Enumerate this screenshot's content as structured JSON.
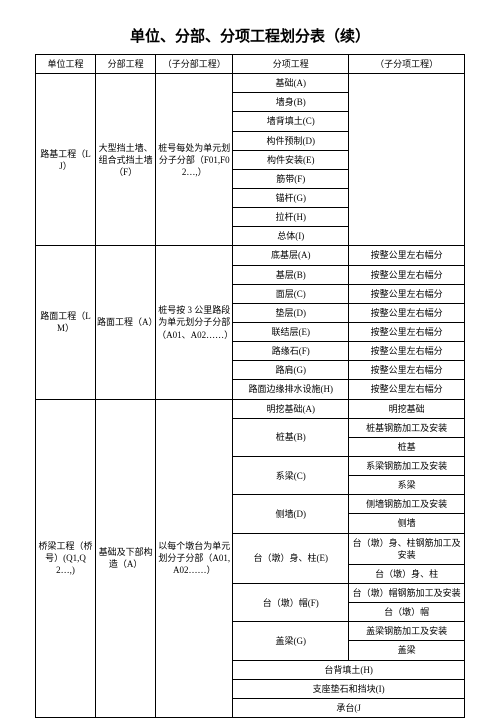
{
  "title": "单位、分部、分项工程划分表（续）",
  "headers": {
    "c1": "单位工程",
    "c2": "分部工程",
    "c3": "（子分部工程）",
    "c4": "分项工程",
    "c5": "（子分项工程）"
  },
  "s1": {
    "unit": "路基工程（LJ）",
    "part": "大型挡土墙、组合式挡土墙（F）",
    "sub": "桩号每处为单元划分子分部（F01,F02…,）",
    "items": [
      "基础(A)",
      "墙身(B)",
      "墙背填土(C)",
      "构件预制(D)",
      "构件安装(E)",
      "筋带(F)",
      "锚杆(G)",
      "拉杆(H)",
      "总体(I)"
    ]
  },
  "s2": {
    "unit": "路面工程（LM）",
    "part": "路面工程（A）",
    "sub": "桩号按 3 公里路段为单元划分子分部（A01、A02……）",
    "rows": [
      [
        "底基层(A)",
        "按整公里左右幅分"
      ],
      [
        "基层(B)",
        "按整公里左右幅分"
      ],
      [
        "面层(C)",
        "按整公里左右幅分"
      ],
      [
        "垫层(D)",
        "按整公里左右幅分"
      ],
      [
        "联结层(E)",
        "按整公里左右幅分"
      ],
      [
        "路缘石(F)",
        "按整公里左右幅分"
      ],
      [
        "路肩(G)",
        "按整公里左右幅分"
      ],
      [
        "路面边缘排水设施(H)",
        "按整公里左右幅分"
      ]
    ]
  },
  "s3": {
    "unit": "桥梁工程（桥号）(Q1,Q2…,)",
    "part": "基础及下部构造（A）",
    "sub": "以每个墩台为单元划分子分部（A01,A02……）",
    "rows": [
      {
        "c4": "明挖基础(A)",
        "c5": [
          "明挖基础"
        ]
      },
      {
        "c4": "桩基(B)",
        "c5": [
          "桩基钢筋加工及安装",
          "桩基"
        ]
      },
      {
        "c4": "系梁(C)",
        "c5": [
          "系梁钢筋加工及安装",
          "系梁"
        ]
      },
      {
        "c4": "侧墙(D)",
        "c5": [
          "侧墙钢筋加工及安装",
          "侧墙"
        ]
      },
      {
        "c4": "台（墩）身、柱(E)",
        "c5": [
          "台（墩）身、柱钢筋加工及安装",
          "台（墩）身、柱"
        ]
      },
      {
        "c4": "台（墩）帽(F)",
        "c5": [
          "台（墩）帽钢筋加工及安装",
          "台（墩）帽"
        ]
      },
      {
        "c4": "盖梁(G)",
        "c5": [
          "盖梁钢筋加工及安装",
          "盖梁"
        ]
      }
    ],
    "tail": [
      "台背填土(H)",
      "支座垫石和挡块(I)",
      "承台(J"
    ]
  }
}
